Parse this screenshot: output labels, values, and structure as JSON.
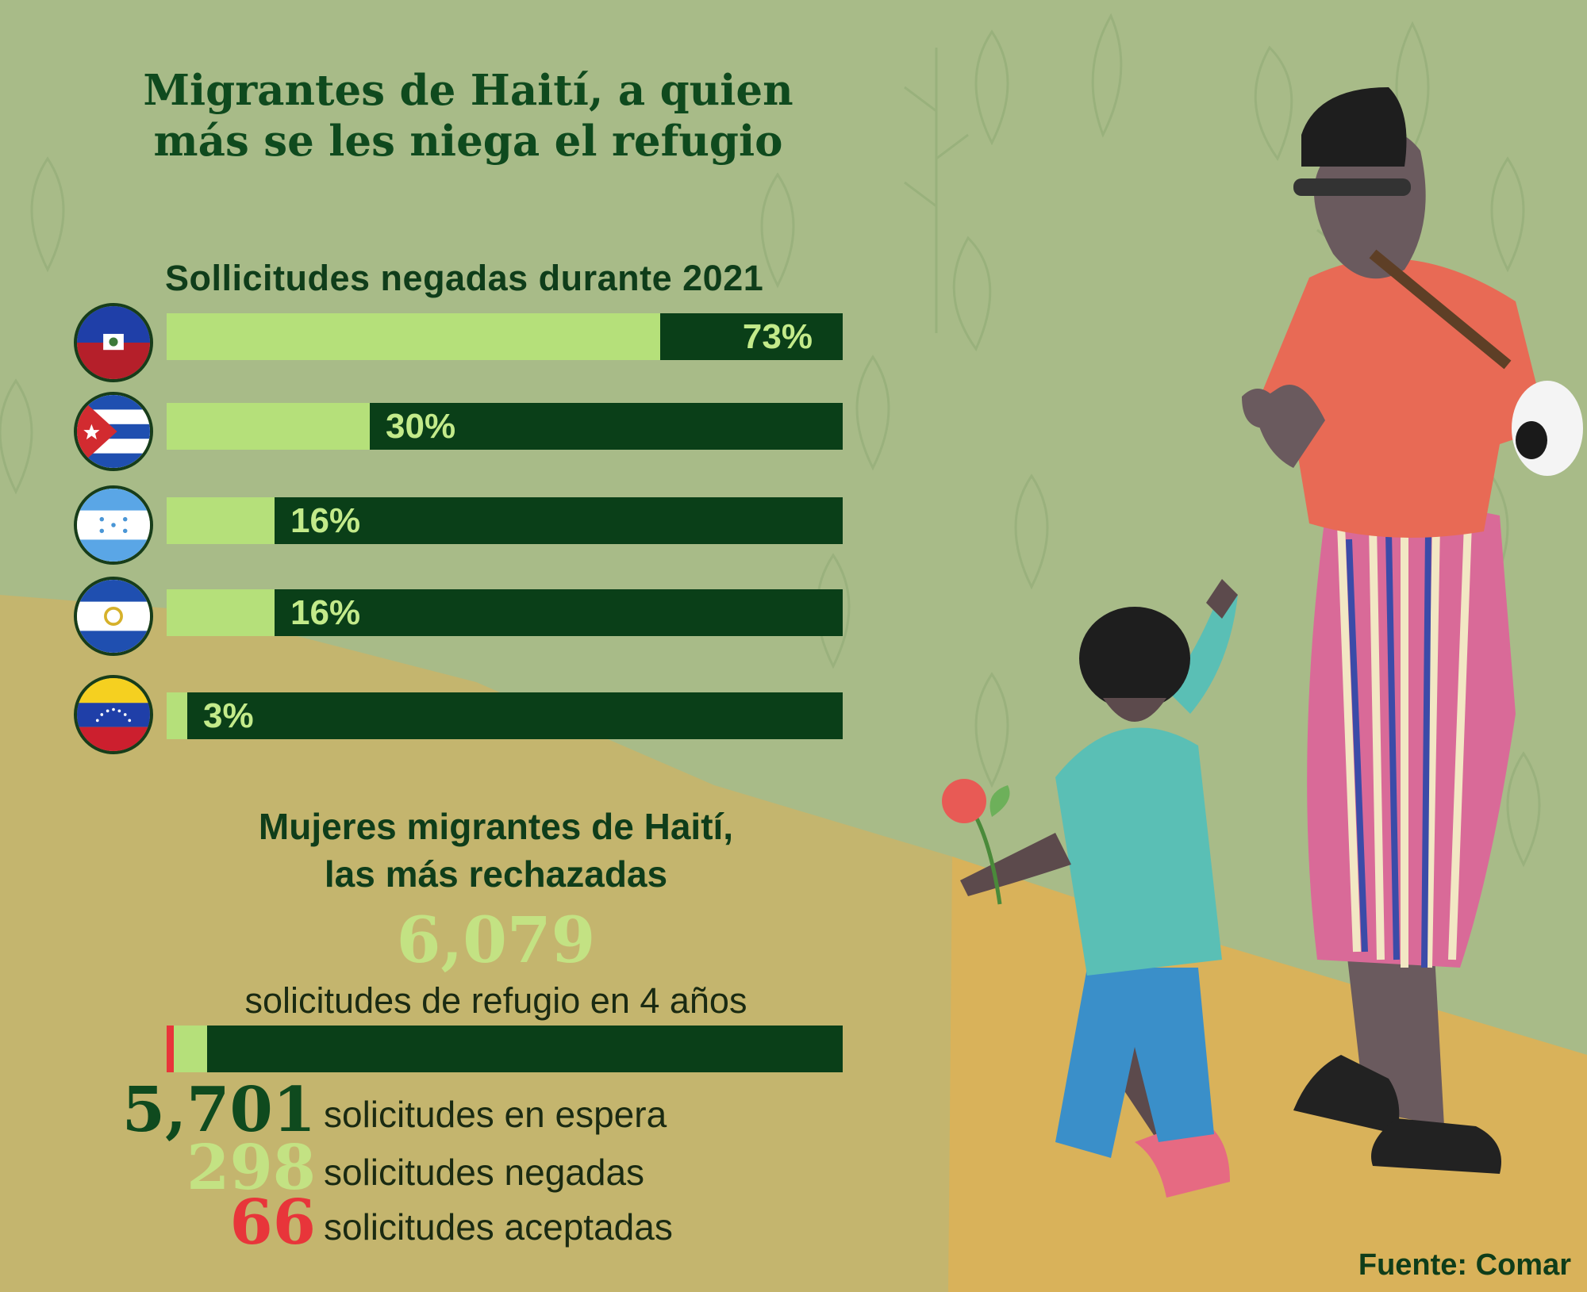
{
  "title_line1": "Migrantes de Haití, a quien",
  "title_line2": "más se les niega el refugio",
  "colors": {
    "dark_green": "#0a3f18",
    "light_green": "#b5e07a",
    "accepted_red": "#e8353a",
    "label_green": "#c3ea8a"
  },
  "chart_data": [
    {
      "type": "bar",
      "title": "Sollicitudes negadas durante 2021",
      "categories": [
        "Haití",
        "Cuba",
        "Honduras",
        "El Salvador",
        "Venezuela"
      ],
      "values": [
        73,
        30,
        16,
        16,
        3
      ],
      "labels": [
        "73%",
        "30%",
        "16%",
        "16%",
        "3%"
      ],
      "flag_icons": [
        "haiti-flag-icon",
        "cuba-flag-icon",
        "honduras-flag-icon",
        "el-salvador-flag-icon",
        "venezuela-flag-icon"
      ],
      "ylim": [
        0,
        100
      ],
      "orientation": "horizontal"
    },
    {
      "type": "bar",
      "title_line1": "Mujeres migrantes de Haití,",
      "title_line2": "las más rechazadas",
      "total": "6,079",
      "total_desc": "solicitudes de refugio en 4 años",
      "series": [
        {
          "label": "solicitudes aceptadas",
          "value": 66,
          "display": "66",
          "color": "#e8353a"
        },
        {
          "label": "solicitudes negadas",
          "value": 298,
          "display": "298",
          "color": "#b5e07a"
        },
        {
          "label": "solicitudes en espera",
          "value": 5701,
          "display": "5,701",
          "color": "#0a3f18"
        }
      ],
      "stats_order": [
        2,
        1,
        0
      ],
      "orientation": "horizontal-stacked"
    }
  ],
  "source": "Fuente: Comar"
}
